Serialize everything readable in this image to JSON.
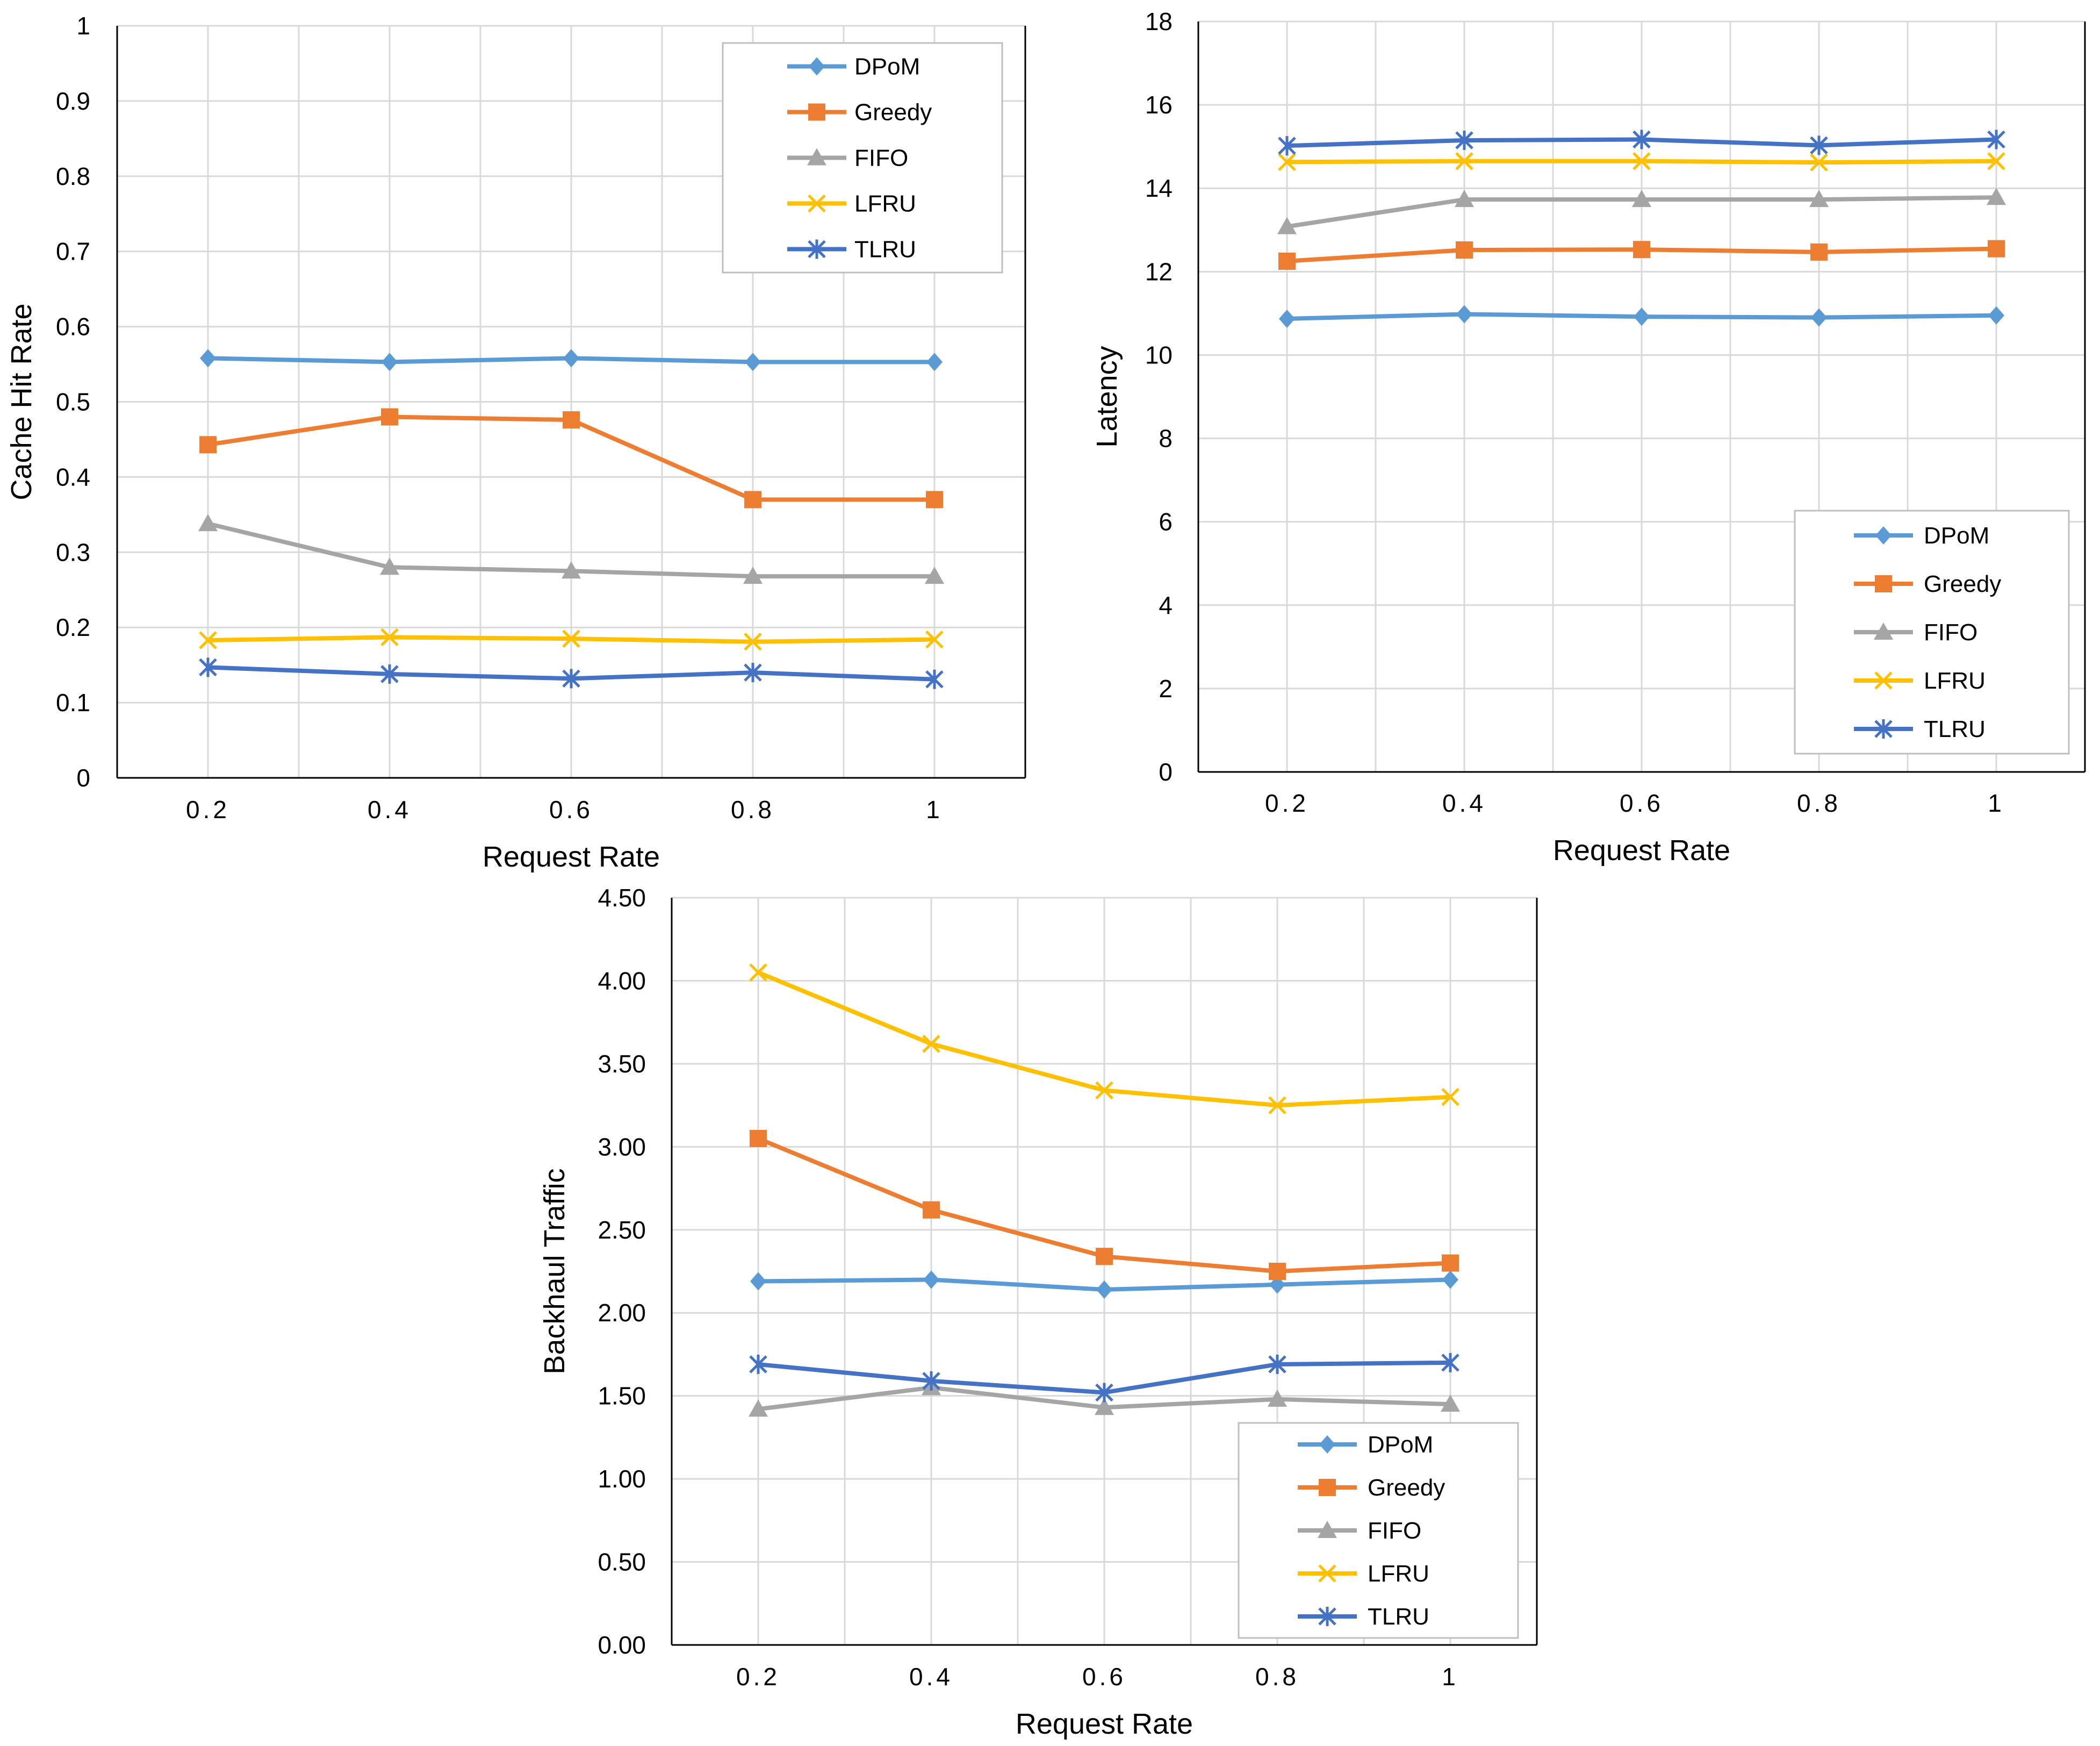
{
  "chart_data": [
    {
      "type": "line",
      "title": "",
      "xlabel": "Request Rate",
      "ylabel": "Cache Hit Rate",
      "categories": [
        "0.2",
        "0.4",
        "0.6",
        "0.8",
        "1"
      ],
      "ylim": [
        0,
        1
      ],
      "yticks": [
        0,
        0.1,
        0.2,
        0.3,
        0.4,
        0.5,
        0.6,
        0.7,
        0.8,
        0.9,
        1
      ],
      "ytick_labels": [
        "0",
        "0.1",
        "0.2",
        "0.3",
        "0.4",
        "0.5",
        "0.6",
        "0.7",
        "0.8",
        "0.9",
        "1"
      ],
      "grid": true,
      "legend_position": "top-right",
      "series": [
        {
          "name": "DPoM",
          "color": "#5B9BD5",
          "marker": "diamond",
          "values": [
            0.558,
            0.553,
            0.558,
            0.553,
            0.553
          ]
        },
        {
          "name": "Greedy",
          "color": "#ED7D31",
          "marker": "square",
          "values": [
            0.443,
            0.48,
            0.476,
            0.37,
            0.37
          ]
        },
        {
          "name": "FIFO",
          "color": "#A5A5A5",
          "marker": "triangle",
          "values": [
            0.338,
            0.28,
            0.275,
            0.268,
            0.268
          ]
        },
        {
          "name": "LFRU",
          "color": "#FFC000",
          "marker": "x",
          "values": [
            0.183,
            0.187,
            0.185,
            0.181,
            0.184
          ]
        },
        {
          "name": "TLRU",
          "color": "#4472C4",
          "marker": "star",
          "values": [
            0.147,
            0.138,
            0.132,
            0.14,
            0.131
          ]
        }
      ]
    },
    {
      "type": "line",
      "title": "",
      "xlabel": "Request Rate",
      "ylabel": "Latency",
      "categories": [
        "0.2",
        "0.4",
        "0.6",
        "0.8",
        "1"
      ],
      "ylim": [
        0,
        18
      ],
      "yticks": [
        0,
        2,
        4,
        6,
        8,
        10,
        12,
        14,
        16,
        18
      ],
      "ytick_labels": [
        "0",
        "2",
        "4",
        "6",
        "8",
        "10",
        "12",
        "14",
        "16",
        "18"
      ],
      "grid": true,
      "legend_position": "bottom-right",
      "series": [
        {
          "name": "DPoM",
          "color": "#5B9BD5",
          "marker": "diamond",
          "values": [
            10.87,
            10.98,
            10.92,
            10.9,
            10.95
          ]
        },
        {
          "name": "Greedy",
          "color": "#ED7D31",
          "marker": "square",
          "values": [
            12.25,
            12.52,
            12.53,
            12.47,
            12.55
          ]
        },
        {
          "name": "FIFO",
          "color": "#A5A5A5",
          "marker": "triangle",
          "values": [
            13.08,
            13.73,
            13.73,
            13.73,
            13.78
          ]
        },
        {
          "name": "LFRU",
          "color": "#FFC000",
          "marker": "x",
          "values": [
            14.63,
            14.65,
            14.65,
            14.62,
            14.65
          ]
        },
        {
          "name": "TLRU",
          "color": "#4472C4",
          "marker": "star",
          "values": [
            15.02,
            15.15,
            15.17,
            15.03,
            15.17
          ]
        }
      ]
    },
    {
      "type": "line",
      "title": "",
      "xlabel": "Request Rate",
      "ylabel": "Backhaul Traffic",
      "categories": [
        "0.2",
        "0.4",
        "0.6",
        "0.8",
        "1"
      ],
      "ylim": [
        0,
        4.5
      ],
      "yticks": [
        0,
        0.5,
        1,
        1.5,
        2,
        2.5,
        3,
        3.5,
        4,
        4.5
      ],
      "ytick_labels": [
        "0.00",
        "0.50",
        "1.00",
        "1.50",
        "2.00",
        "2.50",
        "3.00",
        "3.50",
        "4.00",
        "4.50"
      ],
      "grid": true,
      "legend_position": "bottom-right",
      "series": [
        {
          "name": "DPoM",
          "color": "#5B9BD5",
          "marker": "diamond",
          "values": [
            2.19,
            2.2,
            2.14,
            2.17,
            2.2
          ]
        },
        {
          "name": "Greedy",
          "color": "#ED7D31",
          "marker": "square",
          "values": [
            3.05,
            2.62,
            2.34,
            2.25,
            2.3
          ]
        },
        {
          "name": "FIFO",
          "color": "#A5A5A5",
          "marker": "triangle",
          "values": [
            1.42,
            1.55,
            1.43,
            1.48,
            1.45
          ]
        },
        {
          "name": "LFRU",
          "color": "#FFC000",
          "marker": "x",
          "values": [
            4.05,
            3.62,
            3.34,
            3.25,
            3.3
          ]
        },
        {
          "name": "TLRU",
          "color": "#4472C4",
          "marker": "star",
          "values": [
            1.69,
            1.59,
            1.52,
            1.69,
            1.7
          ]
        }
      ]
    }
  ]
}
